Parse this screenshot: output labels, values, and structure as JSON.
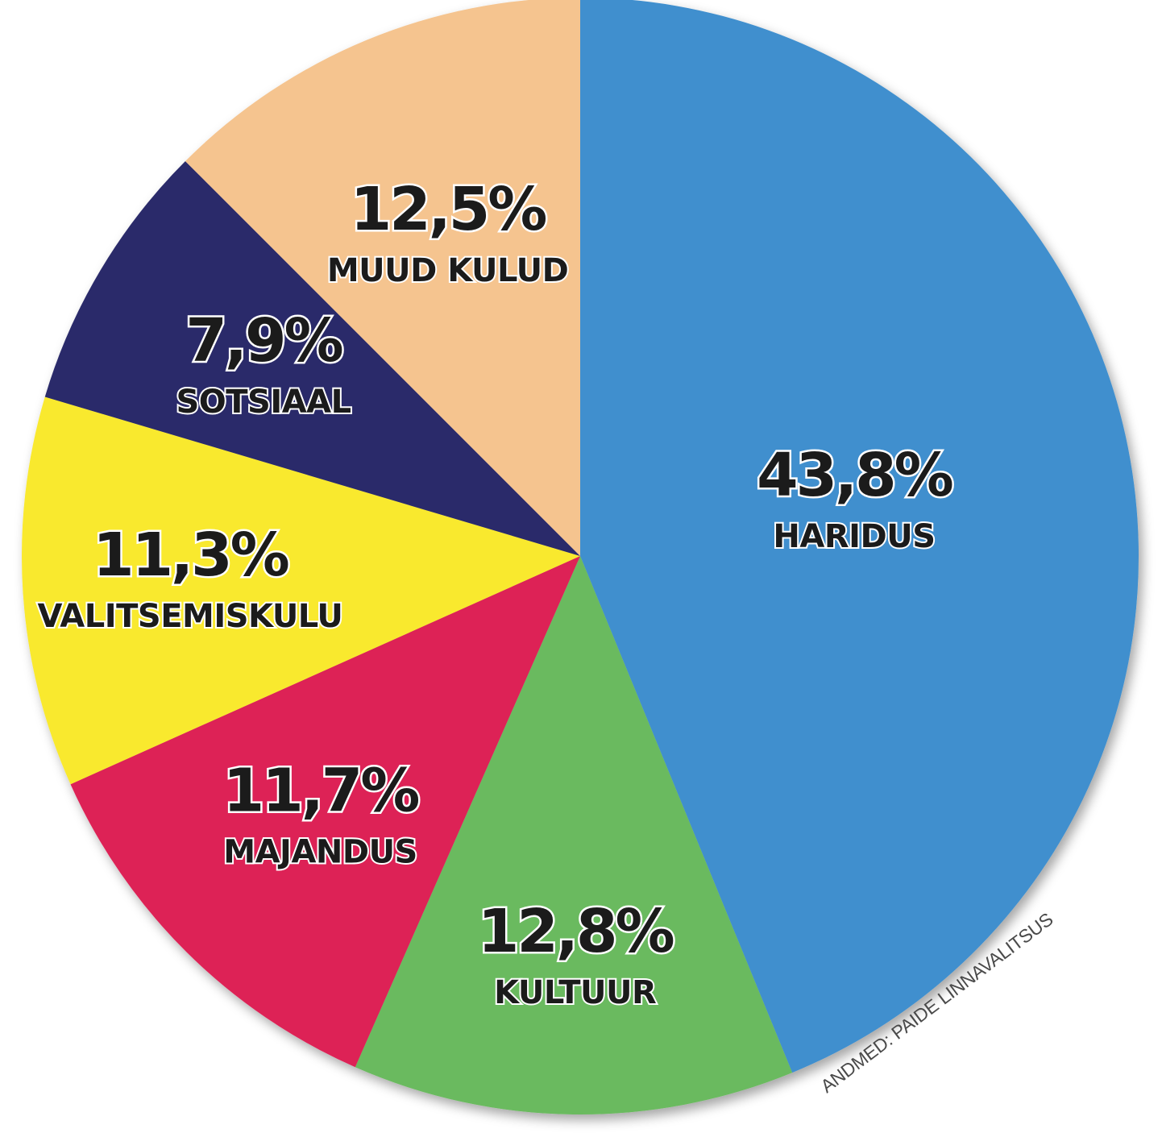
{
  "chart_data": {
    "type": "pie",
    "slices": [
      {
        "label": "HARIDUS",
        "value": 43.8,
        "value_text": "43,8%",
        "color": "#3f8fce"
      },
      {
        "label": "KULTUUR",
        "value": 12.8,
        "value_text": "12,8%",
        "color": "#6bba5f"
      },
      {
        "label": "MAJANDUS",
        "value": 11.7,
        "value_text": "11,7%",
        "color": "#dd2457"
      },
      {
        "label": "VALITSEMISKULU",
        "value": 11.3,
        "value_text": "11,3%",
        "color": "#f9e92e"
      },
      {
        "label": "SOTSIAAL",
        "value": 7.9,
        "value_text": "7,9%",
        "color": "#2a2a6b"
      },
      {
        "label": "MUUD KULUD",
        "value": 12.5,
        "value_text": "12,5%",
        "color": "#f5c48f"
      }
    ],
    "source": "ANDMED: PAIDE LINNAVALITSUS"
  }
}
